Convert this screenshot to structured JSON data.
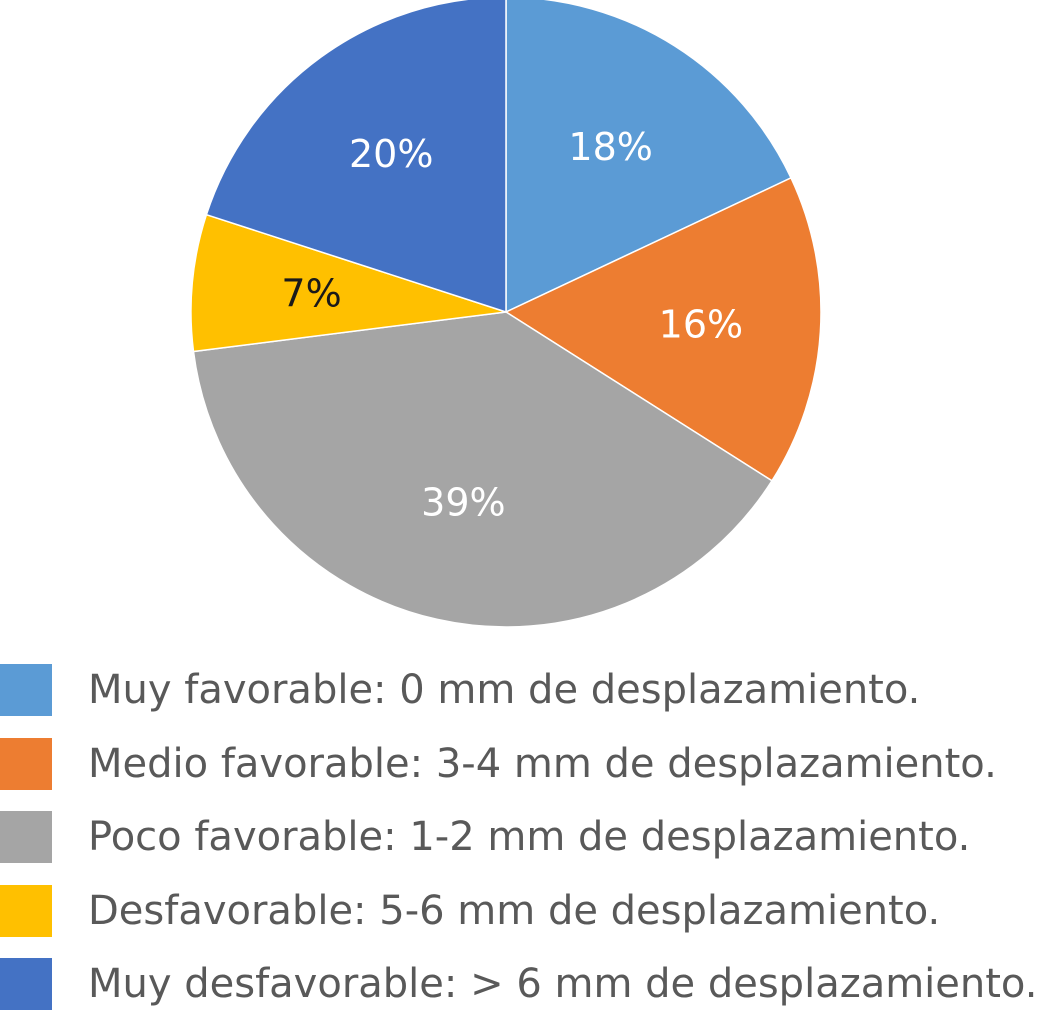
{
  "chart_data": {
    "type": "pie",
    "slices": [
      {
        "label": "Muy favorable: 0 mm de desplazamiento.",
        "value": 18,
        "display": "18%",
        "color": "#5B9BD5",
        "label_color": "#ffffff"
      },
      {
        "label": "Medio favorable: 3-4 mm de desplazamiento.",
        "value": 16,
        "display": "16%",
        "color": "#ED7D31",
        "label_color": "#ffffff"
      },
      {
        "label": "Poco favorable: 1-2 mm de desplazamiento.",
        "value": 39,
        "display": "39%",
        "color": "#A5A5A5",
        "label_color": "#ffffff"
      },
      {
        "label": "Desfavorable: 5-6 mm de desplazamiento.",
        "value": 7,
        "display": "7%",
        "color": "#FFC000",
        "label_color": "#1a1a1a"
      },
      {
        "label": "Muy desfavorable: > 6 mm de desplazamiento.",
        "value": 20,
        "display": "20%",
        "color": "#4472C4",
        "label_color": "#ffffff"
      }
    ],
    "start_angle": "12 o'clock",
    "direction": "clockwise",
    "legend_position": "bottom"
  }
}
